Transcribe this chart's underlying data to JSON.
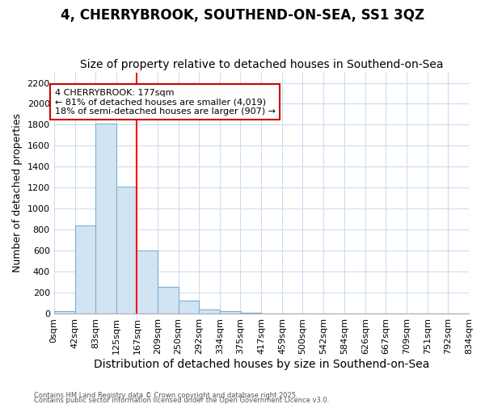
{
  "title1": "4, CHERRYBROOK, SOUTHEND-ON-SEA, SS1 3QZ",
  "title2": "Size of property relative to detached houses in Southend-on-Sea",
  "xlabel": "Distribution of detached houses by size in Southend-on-Sea",
  "ylabel": "Number of detached properties",
  "bin_labels": [
    "0sqm",
    "42sqm",
    "83sqm",
    "125sqm",
    "167sqm",
    "209sqm",
    "250sqm",
    "292sqm",
    "334sqm",
    "375sqm",
    "417sqm",
    "459sqm",
    "500sqm",
    "542sqm",
    "584sqm",
    "626sqm",
    "667sqm",
    "709sqm",
    "751sqm",
    "792sqm",
    "834sqm"
  ],
  "bin_edges": [
    0,
    42,
    83,
    125,
    167,
    209,
    250,
    292,
    334,
    375,
    417,
    459,
    500,
    542,
    584,
    626,
    667,
    709,
    751,
    792,
    834
  ],
  "bar_heights": [
    20,
    840,
    1810,
    1210,
    600,
    255,
    125,
    40,
    20,
    5,
    0,
    0,
    0,
    0,
    0,
    0,
    0,
    0,
    0,
    0
  ],
  "bar_color": "#d0e4f4",
  "bar_edge_color": "#7ab0d4",
  "red_line_x": 167,
  "ylim": [
    0,
    2300
  ],
  "yticks": [
    0,
    200,
    400,
    600,
    800,
    1000,
    1200,
    1400,
    1600,
    1800,
    2000,
    2200
  ],
  "annotation_title": "4 CHERRYBROOK: 177sqm",
  "annotation_line1": "← 81% of detached houses are smaller (4,019)",
  "annotation_line2": "18% of semi-detached houses are larger (907) →",
  "annotation_box_color": "#ffffff",
  "annotation_box_edge": "#cc0000",
  "footnote1": "Contains HM Land Registry data © Crown copyright and database right 2025.",
  "footnote2": "Contains public sector information licensed under the Open Government Licence v3.0.",
  "bg_color": "#ffffff",
  "grid_color": "#ccdcf0",
  "title1_fontsize": 12,
  "title2_fontsize": 10,
  "xlabel_fontsize": 10,
  "ylabel_fontsize": 9,
  "tick_fontsize": 8
}
